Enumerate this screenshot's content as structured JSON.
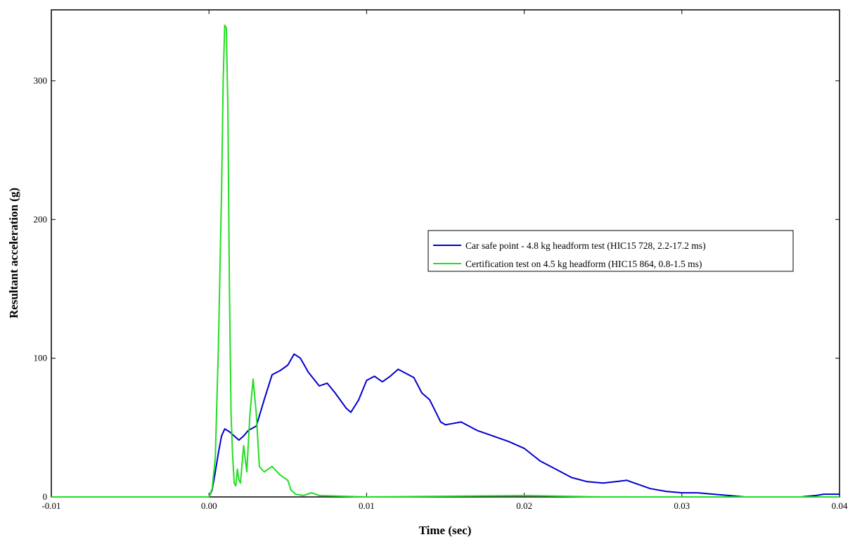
{
  "chart_data": {
    "type": "line",
    "xlabel": "Time (sec)",
    "ylabel": "Resultant acceleration (g)",
    "xlim": [
      -0.01,
      0.04
    ],
    "ylim": [
      0,
      342
    ],
    "x_ticks": [
      -0.01,
      0.0,
      0.01,
      0.02,
      0.03,
      0.04
    ],
    "x_tick_labels": [
      "-0.01",
      "0.00",
      "0.01",
      "0.02",
      "0.03",
      "0.04"
    ],
    "y_ticks": [
      0,
      100,
      200,
      300
    ],
    "y_tick_labels": [
      "0",
      "100",
      "200",
      "300"
    ],
    "grid": false,
    "legend_position": "right-center",
    "series": [
      {
        "name": "Car safe point - 4.8 kg headform test (HIC15 728, 2.2-17.2 ms)",
        "color": "#0000cc",
        "points": [
          [
            -0.01,
            0
          ],
          [
            0.0,
            0
          ],
          [
            0.0002,
            5
          ],
          [
            0.0004,
            18
          ],
          [
            0.0006,
            32
          ],
          [
            0.0008,
            44
          ],
          [
            0.001,
            49
          ],
          [
            0.0013,
            47
          ],
          [
            0.0016,
            44
          ],
          [
            0.0019,
            41
          ],
          [
            0.0022,
            44
          ],
          [
            0.0025,
            48
          ],
          [
            0.003,
            51
          ],
          [
            0.0035,
            70
          ],
          [
            0.004,
            88
          ],
          [
            0.0045,
            91
          ],
          [
            0.005,
            95
          ],
          [
            0.0054,
            103
          ],
          [
            0.0058,
            100
          ],
          [
            0.0063,
            90
          ],
          [
            0.007,
            80
          ],
          [
            0.0075,
            82
          ],
          [
            0.008,
            75
          ],
          [
            0.0087,
            64
          ],
          [
            0.009,
            61
          ],
          [
            0.0095,
            70
          ],
          [
            0.01,
            84
          ],
          [
            0.0105,
            87
          ],
          [
            0.011,
            83
          ],
          [
            0.0115,
            87
          ],
          [
            0.012,
            92
          ],
          [
            0.0125,
            89
          ],
          [
            0.013,
            86
          ],
          [
            0.0135,
            75
          ],
          [
            0.014,
            70
          ],
          [
            0.0147,
            54
          ],
          [
            0.015,
            52
          ],
          [
            0.016,
            54
          ],
          [
            0.017,
            48
          ],
          [
            0.018,
            44
          ],
          [
            0.019,
            40
          ],
          [
            0.02,
            35
          ],
          [
            0.021,
            26
          ],
          [
            0.022,
            20
          ],
          [
            0.023,
            14
          ],
          [
            0.024,
            11
          ],
          [
            0.025,
            10
          ],
          [
            0.0258,
            11
          ],
          [
            0.0265,
            12
          ],
          [
            0.027,
            10
          ],
          [
            0.028,
            6
          ],
          [
            0.029,
            4
          ],
          [
            0.03,
            3
          ],
          [
            0.031,
            3
          ],
          [
            0.032,
            2
          ],
          [
            0.033,
            1
          ],
          [
            0.034,
            0
          ],
          [
            0.0375,
            0
          ],
          [
            0.0385,
            1
          ],
          [
            0.039,
            2
          ],
          [
            0.04,
            2
          ]
        ]
      },
      {
        "name": "Certification test on 4.5 kg headform (HIC15 864, 0.8-1.5 ms)",
        "color": "#22dd22",
        "points": [
          [
            -0.01,
            0
          ],
          [
            0.0,
            0
          ],
          [
            0.0002,
            6
          ],
          [
            0.0004,
            28
          ],
          [
            0.0006,
            110
          ],
          [
            0.0008,
            220
          ],
          [
            0.0009,
            300
          ],
          [
            0.001,
            340
          ],
          [
            0.0011,
            338
          ],
          [
            0.0012,
            280
          ],
          [
            0.0013,
            150
          ],
          [
            0.0014,
            60
          ],
          [
            0.0015,
            30
          ],
          [
            0.0016,
            10
          ],
          [
            0.0017,
            8
          ],
          [
            0.0018,
            20
          ],
          [
            0.0019,
            12
          ],
          [
            0.002,
            10
          ],
          [
            0.0022,
            37
          ],
          [
            0.0024,
            18
          ],
          [
            0.0026,
            60
          ],
          [
            0.0028,
            85
          ],
          [
            0.003,
            60
          ],
          [
            0.0032,
            22
          ],
          [
            0.0035,
            18
          ],
          [
            0.004,
            22
          ],
          [
            0.0045,
            16
          ],
          [
            0.005,
            12
          ],
          [
            0.0052,
            5
          ],
          [
            0.0055,
            2
          ],
          [
            0.006,
            1
          ],
          [
            0.0065,
            3
          ],
          [
            0.007,
            1
          ],
          [
            0.01,
            0
          ],
          [
            0.02,
            1
          ],
          [
            0.025,
            0
          ],
          [
            0.04,
            0
          ]
        ]
      }
    ]
  }
}
